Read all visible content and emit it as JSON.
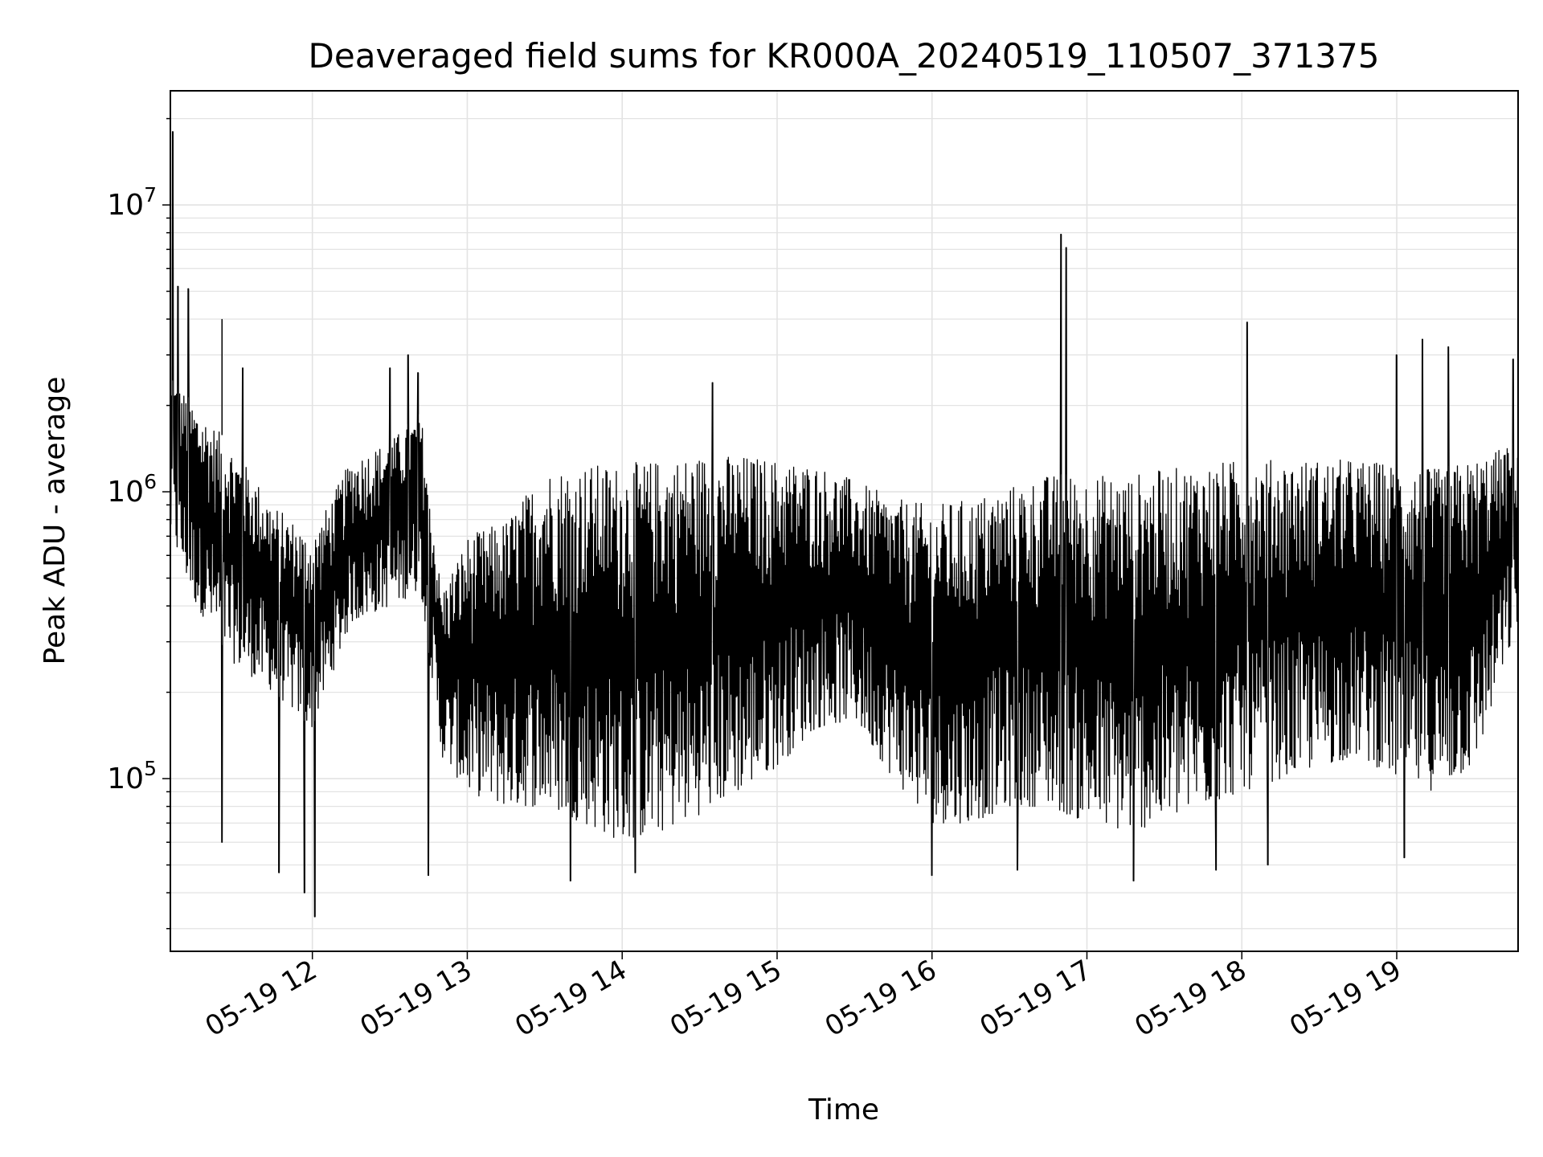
{
  "chart_data": {
    "type": "line",
    "title": "Deaveraged field sums for KR000A_20240519_110507_371375",
    "xlabel": "Time",
    "ylabel": "Peak ADU - average",
    "yscale": "log",
    "grid": true,
    "x_range": [
      "2024-05-19 11:05",
      "2024-05-19 19:47"
    ],
    "ylim": [
      25000,
      25000000
    ],
    "x_ticks": [
      {
        "label": "05-19 12",
        "time": "2024-05-19 12:00"
      },
      {
        "label": "05-19 13",
        "time": "2024-05-19 13:00"
      },
      {
        "label": "05-19 14",
        "time": "2024-05-19 14:00"
      },
      {
        "label": "05-19 15",
        "time": "2024-05-19 15:00"
      },
      {
        "label": "05-19 16",
        "time": "2024-05-19 16:00"
      },
      {
        "label": "05-19 17",
        "time": "2024-05-19 17:00"
      },
      {
        "label": "05-19 18",
        "time": "2024-05-19 18:00"
      },
      {
        "label": "05-19 19",
        "time": "2024-05-19 19:00"
      }
    ],
    "y_ticks": [
      {
        "base": "10",
        "exp": "5",
        "value": 100000
      },
      {
        "base": "10",
        "exp": "6",
        "value": 1000000
      },
      {
        "base": "10",
        "exp": "7",
        "value": 10000000
      }
    ],
    "series_color": "#000000",
    "envelope": {
      "time": [
        "11:05",
        "11:15",
        "11:30",
        "11:45",
        "12:00",
        "12:15",
        "12:30",
        "12:42",
        "12:50",
        "13:00",
        "13:15",
        "13:30",
        "13:45",
        "14:00",
        "14:15",
        "14:30",
        "14:45",
        "15:00",
        "15:15",
        "15:30",
        "15:45",
        "16:00",
        "16:15",
        "16:30",
        "16:45",
        "17:00",
        "17:15",
        "17:30",
        "17:45",
        "18:00",
        "18:15",
        "18:30",
        "18:45",
        "19:00",
        "19:15",
        "19:30",
        "19:47"
      ],
      "upper": [
        2500000,
        2000000,
        1400000,
        900000,
        700000,
        1300000,
        1500000,
        1900000,
        450000,
        700000,
        800000,
        1200000,
        1250000,
        1250000,
        1300000,
        1350000,
        1350000,
        1300000,
        1250000,
        1100000,
        950000,
        900000,
        950000,
        1050000,
        1150000,
        1150000,
        1150000,
        1200000,
        1250000,
        1300000,
        1300000,
        1300000,
        1300000,
        1250000,
        1200000,
        1300000,
        1500000
      ],
      "lower": [
        700000,
        400000,
        250000,
        200000,
        150000,
        350000,
        400000,
        450000,
        120000,
        90000,
        80000,
        80000,
        70000,
        60000,
        65000,
        75000,
        90000,
        110000,
        150000,
        160000,
        100000,
        70000,
        70000,
        80000,
        80000,
        70000,
        65000,
        70000,
        80000,
        90000,
        100000,
        110000,
        120000,
        100000,
        90000,
        110000,
        350000
      ]
    },
    "spikes": [
      {
        "time": "11:06",
        "value": 18000000
      },
      {
        "time": "11:08",
        "value": 5200000
      },
      {
        "time": "11:12",
        "value": 5100000
      },
      {
        "time": "11:25",
        "value": 4000000
      },
      {
        "time": "11:33",
        "value": 2700000
      },
      {
        "time": "12:30",
        "value": 2700000
      },
      {
        "time": "12:37",
        "value": 3000000
      },
      {
        "time": "12:41",
        "value": 2600000
      },
      {
        "time": "14:35",
        "value": 2400000
      },
      {
        "time": "16:50",
        "value": 7900000
      },
      {
        "time": "16:52",
        "value": 7100000
      },
      {
        "time": "18:02",
        "value": 3900000
      },
      {
        "time": "19:00",
        "value": 3000000
      },
      {
        "time": "19:10",
        "value": 3400000
      },
      {
        "time": "19:20",
        "value": 3200000
      },
      {
        "time": "19:45",
        "value": 2900000
      }
    ],
    "dips": [
      {
        "time": "11:25",
        "value": 60000
      },
      {
        "time": "11:47",
        "value": 47000
      },
      {
        "time": "11:57",
        "value": 40000
      },
      {
        "time": "12:01",
        "value": 33000
      },
      {
        "time": "12:45",
        "value": 46000
      },
      {
        "time": "13:40",
        "value": 44000
      },
      {
        "time": "14:05",
        "value": 47000
      },
      {
        "time": "16:00",
        "value": 46000
      },
      {
        "time": "16:33",
        "value": 48000
      },
      {
        "time": "17:18",
        "value": 44000
      },
      {
        "time": "17:50",
        "value": 48000
      },
      {
        "time": "18:10",
        "value": 50000
      },
      {
        "time": "19:03",
        "value": 53000
      }
    ]
  }
}
